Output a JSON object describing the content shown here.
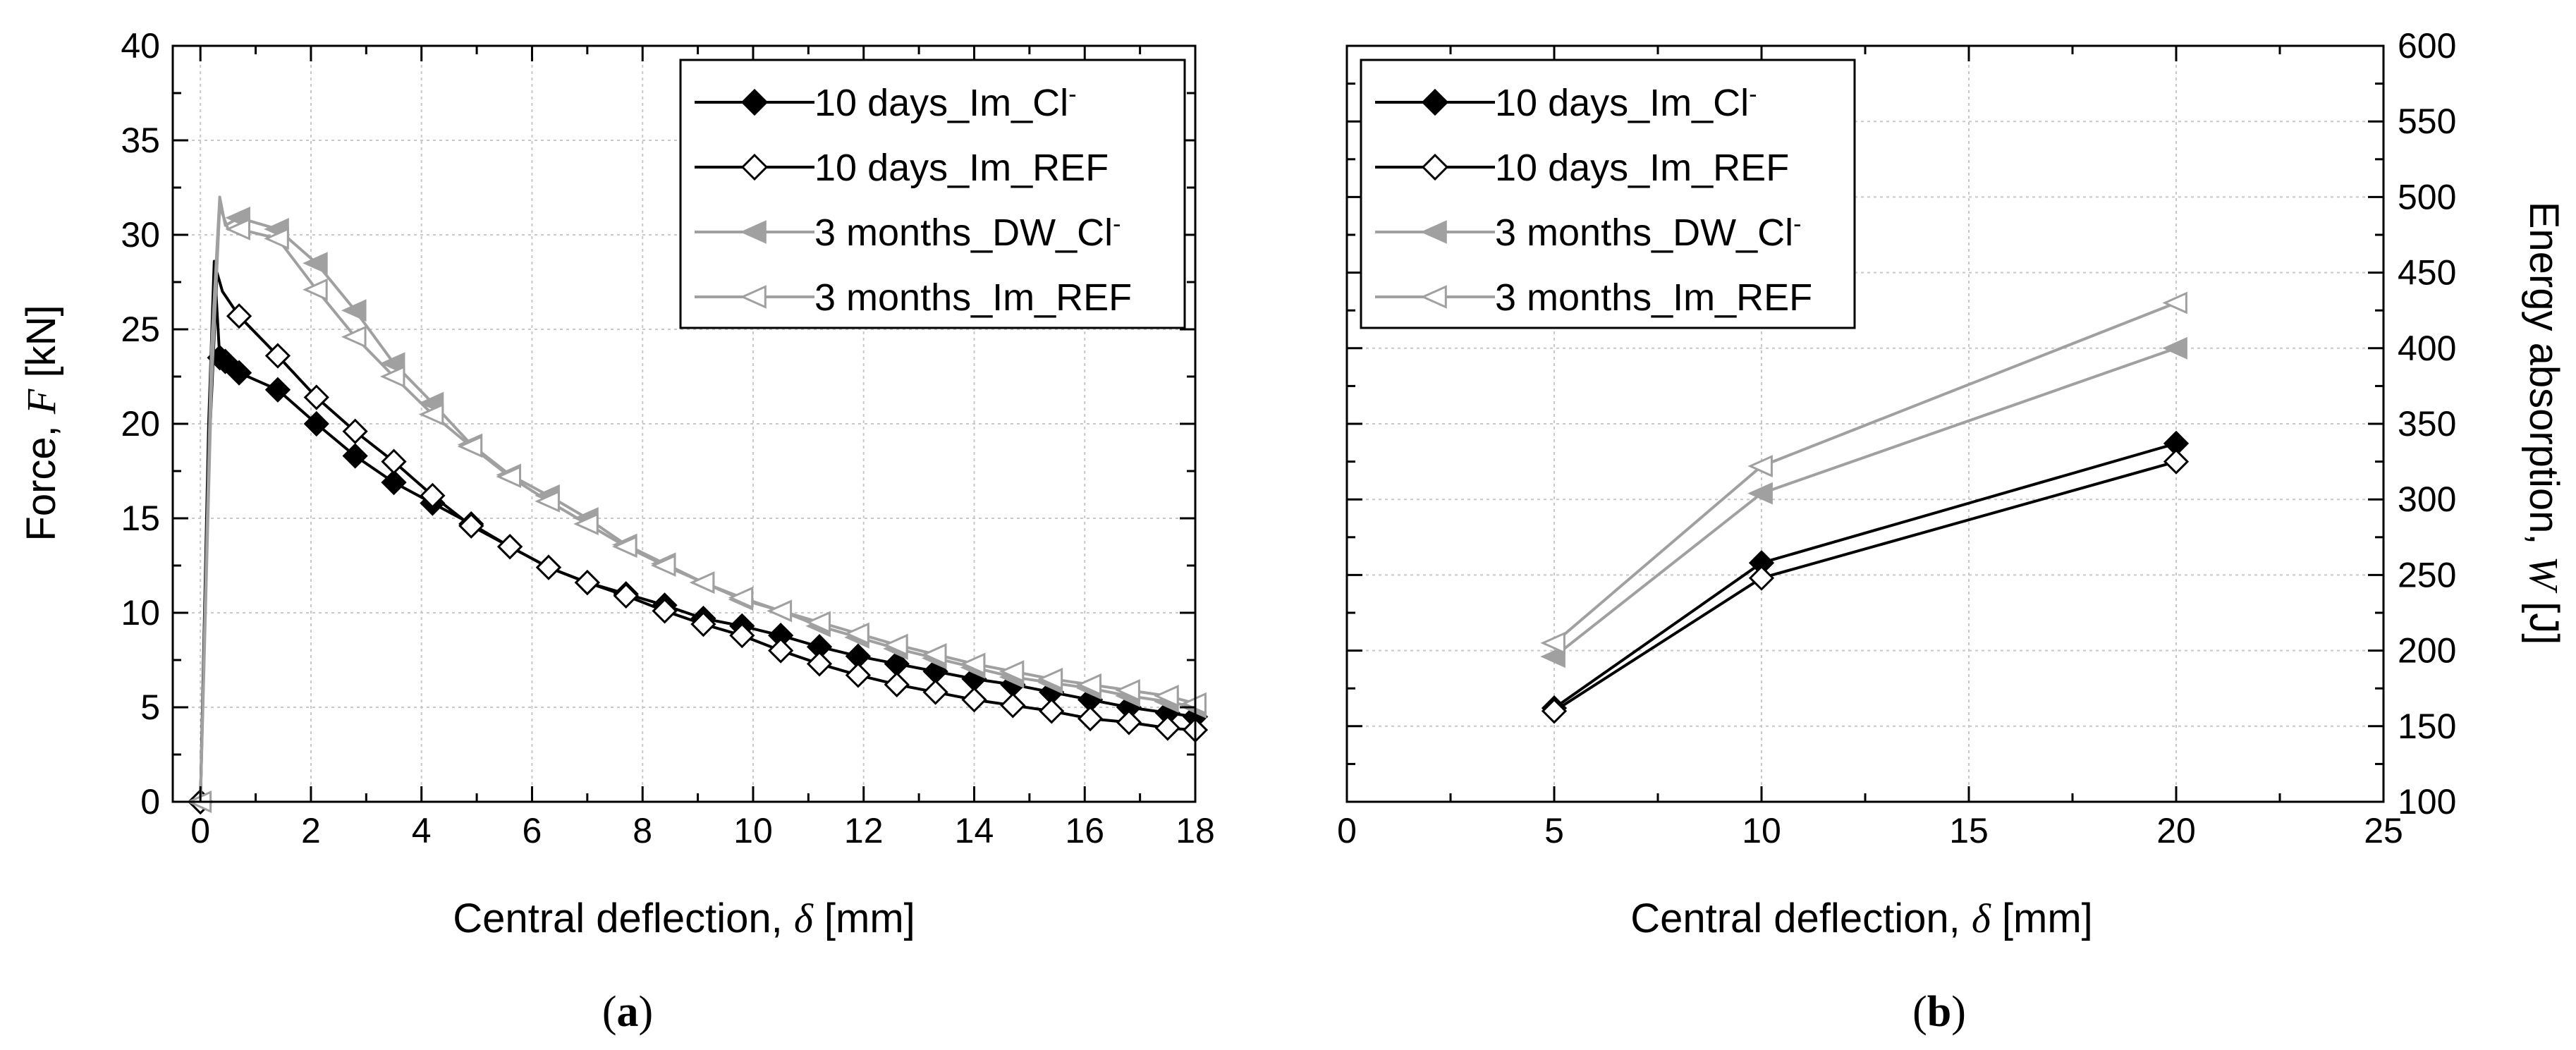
{
  "series_styles": [
    {
      "name": "10 days_Im_Cl⁻",
      "color": "#000000",
      "marker": "diamond",
      "filled": true
    },
    {
      "name": "10 days_Im_REF",
      "color": "#000000",
      "marker": "diamond",
      "filled": false
    },
    {
      "name": "3 months_DW_Cl⁻",
      "color": "#a0a0a0",
      "marker": "triangle-left",
      "filled": true
    },
    {
      "name": "3 months_Im_REF",
      "color": "#a0a0a0",
      "marker": "triangle-left",
      "filled": false
    }
  ],
  "chart_data": [
    {
      "id": "a",
      "panel_label": "(a)",
      "type": "line",
      "xlabel_prefix": "Central deflection, ",
      "xlabel_symbol": "δ",
      "xlabel_suffix": " [mm]",
      "ylabel_prefix": "Force, ",
      "ylabel_symbol": "F",
      "ylabel_suffix": "  [kN]",
      "xlim": [
        -0.5,
        18
      ],
      "ylim": [
        0,
        40
      ],
      "xticks": [
        0,
        2,
        4,
        6,
        8,
        10,
        12,
        14,
        16,
        18
      ],
      "yticks": [
        0,
        5,
        10,
        15,
        20,
        25,
        30,
        35,
        40
      ],
      "xtick_labels": [
        "0",
        "2",
        "4",
        "6",
        "8",
        "10",
        "12",
        "14",
        "16",
        "18"
      ],
      "ytick_labels": [
        "0",
        "5",
        "10",
        "15",
        "20",
        "25",
        "30",
        "35",
        "40"
      ],
      "grid": true,
      "legend_position": "top-right",
      "series": [
        {
          "name": "10 days_Im_Cl⁻",
          "x": [
            0,
            0.15,
            0.25,
            0.3,
            0.35,
            0.45,
            0.7,
            1.4,
            2.1,
            2.8,
            3.5,
            4.2,
            4.9,
            5.6,
            6.3,
            7.0,
            7.7,
            8.4,
            9.1,
            9.8,
            10.5,
            11.2,
            11.9,
            12.6,
            13.3,
            14.0,
            14.7,
            15.4,
            16.1,
            16.8,
            17.5,
            18.0
          ],
          "y": [
            0,
            20,
            28.6,
            26,
            23.5,
            23.3,
            22.7,
            21.8,
            20.0,
            18.3,
            16.9,
            15.8,
            14.7,
            13.5,
            12.4,
            11.6,
            11.0,
            10.4,
            9.7,
            9.3,
            8.8,
            8.2,
            7.7,
            7.3,
            6.9,
            6.5,
            6.2,
            5.8,
            5.4,
            5.0,
            4.7,
            4.5
          ]
        },
        {
          "name": "10 days_Im_REF",
          "x": [
            0,
            0.15,
            0.3,
            0.4,
            0.7,
            1.4,
            2.1,
            2.8,
            3.5,
            4.2,
            4.9,
            5.6,
            6.3,
            7.0,
            7.7,
            8.4,
            9.1,
            9.8,
            10.5,
            11.2,
            11.9,
            12.6,
            13.3,
            14.0,
            14.7,
            15.4,
            16.1,
            16.8,
            17.5,
            18.0
          ],
          "y": [
            0,
            18,
            28.0,
            27.0,
            25.7,
            23.6,
            21.4,
            19.6,
            18.0,
            16.2,
            14.6,
            13.5,
            12.4,
            11.6,
            10.9,
            10.1,
            9.4,
            8.8,
            8.0,
            7.3,
            6.7,
            6.2,
            5.8,
            5.4,
            5.1,
            4.8,
            4.4,
            4.2,
            3.9,
            3.8
          ]
        },
        {
          "name": "3 months_DW_Cl⁻",
          "x": [
            0,
            0.2,
            0.35,
            0.45,
            0.7,
            1.4,
            2.1,
            2.8,
            3.5,
            4.2,
            4.9,
            5.6,
            6.3,
            7.0,
            7.7,
            8.4,
            9.1,
            9.8,
            10.5,
            11.2,
            11.9,
            12.6,
            13.3,
            14.0,
            14.7,
            15.4,
            16.1,
            16.8,
            17.5,
            18.0
          ],
          "y": [
            0,
            24,
            32.0,
            30.5,
            30.9,
            30.3,
            28.5,
            26.0,
            23.2,
            21.1,
            18.9,
            17.3,
            16.2,
            15.0,
            13.6,
            12.6,
            11.6,
            10.7,
            10.1,
            9.3,
            8.7,
            8.1,
            7.6,
            7.1,
            6.6,
            6.3,
            6.0,
            5.6,
            5.3,
            5.0
          ]
        },
        {
          "name": "3 months_Im_REF",
          "x": [
            0,
            0.2,
            0.35,
            0.5,
            0.7,
            1.4,
            2.1,
            2.8,
            3.5,
            4.2,
            4.9,
            5.6,
            6.3,
            7.0,
            7.7,
            8.4,
            9.1,
            9.8,
            10.5,
            11.2,
            11.9,
            12.6,
            13.3,
            14.0,
            14.7,
            15.4,
            16.1,
            16.8,
            17.5,
            18.0
          ],
          "y": [
            0,
            22,
            31.5,
            30.3,
            30.3,
            29.8,
            27.1,
            24.6,
            22.5,
            20.5,
            18.8,
            17.2,
            15.9,
            14.7,
            13.5,
            12.5,
            11.6,
            10.8,
            10.1,
            9.5,
            8.9,
            8.3,
            7.8,
            7.3,
            6.9,
            6.5,
            6.2,
            5.9,
            5.6,
            5.2
          ]
        }
      ]
    },
    {
      "id": "b",
      "panel_label": "(b)",
      "type": "line",
      "xlabel_prefix": "Central deflection, ",
      "xlabel_symbol": "δ",
      "xlabel_suffix": " [mm]",
      "ylabel_prefix": "Energy absorption, ",
      "ylabel_symbol": "W",
      "ylabel_suffix": "  [J]",
      "y_axis_side": "right",
      "xlim": [
        0,
        25
      ],
      "ylim": [
        100,
        600
      ],
      "xticks": [
        0,
        5,
        10,
        15,
        20,
        25
      ],
      "yticks": [
        100,
        150,
        200,
        250,
        300,
        350,
        400,
        450,
        500,
        550,
        600
      ],
      "xtick_labels": [
        "0",
        "5",
        "10",
        "15",
        "20",
        "25"
      ],
      "ytick_labels": [
        "100",
        "150",
        "200",
        "250",
        "300",
        "350",
        "400",
        "450",
        "500",
        "550",
        "600"
      ],
      "grid": true,
      "legend_position": "top-left",
      "series": [
        {
          "name": "10 days_Im_Cl⁻",
          "x": [
            5,
            10,
            20
          ],
          "y": [
            162,
            258,
            337
          ]
        },
        {
          "name": "10 days_Im_REF",
          "x": [
            5,
            10,
            20
          ],
          "y": [
            160,
            248,
            325
          ]
        },
        {
          "name": "3 months_DW_Cl⁻",
          "x": [
            5,
            10,
            20
          ],
          "y": [
            196,
            304,
            400
          ]
        },
        {
          "name": "3 months_Im_REF",
          "x": [
            5,
            10,
            20
          ],
          "y": [
            205,
            322,
            430
          ]
        }
      ]
    }
  ]
}
